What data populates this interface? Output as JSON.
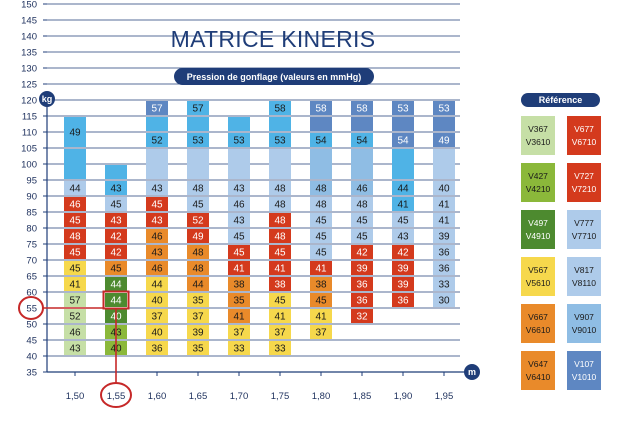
{
  "title": "MATRICE KINERIS",
  "subtitle": "Pression de gonflage (valeurs en mmHg)",
  "colors": {
    "navy": "#1f3d78",
    "light_green": "#c6dfa6",
    "green": "#8bb83a",
    "dark_green": "#4d8a2f",
    "yellow": "#f6d84c",
    "orange": "#e98a2a",
    "red": "#d43a1d",
    "pale_blue": "#aecbea",
    "light_blue": "#8fbde4",
    "sky": "#4fb3e6",
    "steel": "#5e87c2",
    "indigo": "#3f5fa7"
  },
  "legend": {
    "title": "Référence",
    "items": [
      {
        "l1": "V367",
        "l2": "V3610",
        "color": "light_green"
      },
      {
        "l1": "V677",
        "l2": "V6710",
        "color": "red"
      },
      {
        "l1": "V427",
        "l2": "V4210",
        "color": "green"
      },
      {
        "l1": "V727",
        "l2": "V7210",
        "color": "red"
      },
      {
        "l1": "V497",
        "l2": "V4910",
        "color": "dark_green"
      },
      {
        "l1": "V777",
        "l2": "V7710",
        "color": "pale_blue"
      },
      {
        "l1": "V567",
        "l2": "V5610",
        "color": "yellow"
      },
      {
        "l1": "V817",
        "l2": "V8110",
        "color": "pale_blue"
      },
      {
        "l1": "V667",
        "l2": "V6610",
        "color": "orange"
      },
      {
        "l1": "V907",
        "l2": "V9010",
        "color": "light_blue"
      },
      {
        "l1": "V647",
        "l2": "V6410",
        "color": "orange"
      },
      {
        "l1": "V107",
        "l2": "V1010",
        "color": "steel"
      }
    ]
  },
  "chart_data": {
    "type": "heatmap",
    "x_unit": "m",
    "y_unit": "kg",
    "x_ticks": [
      "1,50",
      "1,55",
      "1,60",
      "1,65",
      "1,70",
      "1,75",
      "1,80",
      "1,85",
      "1,90",
      "1,95"
    ],
    "y_ticks": [
      35,
      40,
      45,
      50,
      55,
      60,
      65,
      70,
      75,
      80,
      85,
      90,
      95,
      100,
      105,
      110,
      115,
      120,
      125,
      130,
      135,
      140,
      145,
      150
    ],
    "highlight": {
      "x": "1,55",
      "y": 55
    },
    "columns": [
      {
        "x": "1,50",
        "cells": [
          {
            "from": 40,
            "to": 45,
            "v": "43",
            "c": "light_green"
          },
          {
            "from": 45,
            "to": 50,
            "v": "46",
            "c": "light_green"
          },
          {
            "from": 50,
            "to": 55,
            "v": "52",
            "c": "light_green"
          },
          {
            "from": 55,
            "to": 60,
            "v": "57",
            "c": "light_green"
          },
          {
            "from": 60,
            "to": 65,
            "v": "41",
            "c": "yellow"
          },
          {
            "from": 65,
            "to": 70,
            "v": "45",
            "c": "yellow"
          },
          {
            "from": 70,
            "to": 75,
            "v": "45",
            "c": "red"
          },
          {
            "from": 75,
            "to": 80,
            "v": "48",
            "c": "red"
          },
          {
            "from": 80,
            "to": 85,
            "v": "45",
            "c": "red"
          },
          {
            "from": 85,
            "to": 90,
            "v": "46",
            "c": "red"
          },
          {
            "from": 90,
            "to": 95,
            "v": "44",
            "c": "pale_blue"
          },
          {
            "from": 95,
            "to": 105,
            "v": "",
            "c": "sky"
          },
          {
            "from": 105,
            "to": 115,
            "v": "49",
            "c": "sky"
          }
        ]
      },
      {
        "x": "1,55",
        "cells": [
          {
            "from": 40,
            "to": 45,
            "v": "40",
            "c": "green"
          },
          {
            "from": 45,
            "to": 50,
            "v": "43",
            "c": "green"
          },
          {
            "from": 50,
            "to": 55,
            "v": "40",
            "c": "dark_green"
          },
          {
            "from": 55,
            "to": 60,
            "v": "44",
            "c": "dark_green"
          },
          {
            "from": 60,
            "to": 65,
            "v": "44",
            "c": "dark_green"
          },
          {
            "from": 65,
            "to": 70,
            "v": "45",
            "c": "orange"
          },
          {
            "from": 70,
            "to": 75,
            "v": "42",
            "c": "red"
          },
          {
            "from": 75,
            "to": 80,
            "v": "42",
            "c": "red"
          },
          {
            "from": 80,
            "to": 85,
            "v": "43",
            "c": "red"
          },
          {
            "from": 85,
            "to": 90,
            "v": "45",
            "c": "pale_blue"
          },
          {
            "from": 90,
            "to": 95,
            "v": "43",
            "c": "sky"
          },
          {
            "from": 95,
            "to": 100,
            "v": "",
            "c": "sky"
          }
        ]
      },
      {
        "x": "1,60",
        "cells": [
          {
            "from": 40,
            "to": 45,
            "v": "36",
            "c": "yellow"
          },
          {
            "from": 45,
            "to": 50,
            "v": "40",
            "c": "yellow"
          },
          {
            "from": 50,
            "to": 55,
            "v": "37",
            "c": "yellow"
          },
          {
            "from": 55,
            "to": 60,
            "v": "40",
            "c": "yellow"
          },
          {
            "from": 60,
            "to": 65,
            "v": "44",
            "c": "yellow"
          },
          {
            "from": 65,
            "to": 70,
            "v": "46",
            "c": "orange"
          },
          {
            "from": 70,
            "to": 75,
            "v": "43",
            "c": "orange"
          },
          {
            "from": 75,
            "to": 80,
            "v": "46",
            "c": "orange"
          },
          {
            "from": 80,
            "to": 85,
            "v": "43",
            "c": "red"
          },
          {
            "from": 85,
            "to": 90,
            "v": "45",
            "c": "red"
          },
          {
            "from": 90,
            "to": 95,
            "v": "43",
            "c": "pale_blue"
          },
          {
            "from": 95,
            "to": 105,
            "v": "",
            "c": "pale_blue"
          },
          {
            "from": 105,
            "to": 110,
            "v": "52",
            "c": "sky"
          },
          {
            "from": 110,
            "to": 115,
            "v": "",
            "c": "sky"
          },
          {
            "from": 115,
            "to": 120,
            "v": "57",
            "c": "steel"
          }
        ]
      },
      {
        "x": "1,65",
        "cells": [
          {
            "from": 40,
            "to": 45,
            "v": "35",
            "c": "yellow"
          },
          {
            "from": 45,
            "to": 50,
            "v": "39",
            "c": "yellow"
          },
          {
            "from": 50,
            "to": 55,
            "v": "37",
            "c": "yellow"
          },
          {
            "from": 55,
            "to": 60,
            "v": "35",
            "c": "yellow"
          },
          {
            "from": 60,
            "to": 65,
            "v": "44",
            "c": "orange"
          },
          {
            "from": 65,
            "to": 70,
            "v": "48",
            "c": "orange"
          },
          {
            "from": 70,
            "to": 75,
            "v": "48",
            "c": "orange"
          },
          {
            "from": 75,
            "to": 80,
            "v": "49",
            "c": "red"
          },
          {
            "from": 80,
            "to": 85,
            "v": "52",
            "c": "red"
          },
          {
            "from": 85,
            "to": 90,
            "v": "45",
            "c": "pale_blue"
          },
          {
            "from": 90,
            "to": 95,
            "v": "48",
            "c": "pale_blue"
          },
          {
            "from": 95,
            "to": 105,
            "v": "",
            "c": "pale_blue"
          },
          {
            "from": 105,
            "to": 110,
            "v": "53",
            "c": "sky"
          },
          {
            "from": 110,
            "to": 115,
            "v": "",
            "c": "sky"
          },
          {
            "from": 115,
            "to": 120,
            "v": "57",
            "c": "sky"
          }
        ]
      },
      {
        "x": "1,70",
        "cells": [
          {
            "from": 40,
            "to": 45,
            "v": "33",
            "c": "yellow"
          },
          {
            "from": 45,
            "to": 50,
            "v": "37",
            "c": "yellow"
          },
          {
            "from": 50,
            "to": 55,
            "v": "41",
            "c": "orange"
          },
          {
            "from": 55,
            "to": 60,
            "v": "35",
            "c": "orange"
          },
          {
            "from": 60,
            "to": 65,
            "v": "38",
            "c": "orange"
          },
          {
            "from": 65,
            "to": 70,
            "v": "41",
            "c": "red"
          },
          {
            "from": 70,
            "to": 75,
            "v": "45",
            "c": "red"
          },
          {
            "from": 75,
            "to": 80,
            "v": "45",
            "c": "pale_blue"
          },
          {
            "from": 80,
            "to": 85,
            "v": "43",
            "c": "pale_blue"
          },
          {
            "from": 85,
            "to": 90,
            "v": "46",
            "c": "pale_blue"
          },
          {
            "from": 90,
            "to": 95,
            "v": "43",
            "c": "pale_blue"
          },
          {
            "from": 95,
            "to": 105,
            "v": "",
            "c": "pale_blue"
          },
          {
            "from": 105,
            "to": 110,
            "v": "53",
            "c": "sky"
          },
          {
            "from": 110,
            "to": 115,
            "v": "",
            "c": "sky"
          }
        ]
      },
      {
        "x": "1,75",
        "cells": [
          {
            "from": 40,
            "to": 45,
            "v": "33",
            "c": "yellow"
          },
          {
            "from": 45,
            "to": 50,
            "v": "37",
            "c": "yellow"
          },
          {
            "from": 50,
            "to": 55,
            "v": "41",
            "c": "yellow"
          },
          {
            "from": 55,
            "to": 60,
            "v": "45",
            "c": "yellow"
          },
          {
            "from": 60,
            "to": 65,
            "v": "38",
            "c": "red"
          },
          {
            "from": 65,
            "to": 70,
            "v": "41",
            "c": "red"
          },
          {
            "from": 70,
            "to": 75,
            "v": "45",
            "c": "red"
          },
          {
            "from": 75,
            "to": 80,
            "v": "48",
            "c": "red"
          },
          {
            "from": 80,
            "to": 85,
            "v": "48",
            "c": "red"
          },
          {
            "from": 85,
            "to": 90,
            "v": "48",
            "c": "pale_blue"
          },
          {
            "from": 90,
            "to": 95,
            "v": "48",
            "c": "pale_blue"
          },
          {
            "from": 95,
            "to": 105,
            "v": "",
            "c": "pale_blue"
          },
          {
            "from": 105,
            "to": 110,
            "v": "53",
            "c": "sky"
          },
          {
            "from": 110,
            "to": 115,
            "v": "",
            "c": "sky"
          },
          {
            "from": 115,
            "to": 120,
            "v": "58",
            "c": "sky"
          }
        ]
      },
      {
        "x": "1,80",
        "cells": [
          {
            "from": 45,
            "to": 50,
            "v": "37",
            "c": "yellow"
          },
          {
            "from": 50,
            "to": 55,
            "v": "41",
            "c": "yellow"
          },
          {
            "from": 55,
            "to": 60,
            "v": "45",
            "c": "orange"
          },
          {
            "from": 60,
            "to": 65,
            "v": "38",
            "c": "orange"
          },
          {
            "from": 65,
            "to": 70,
            "v": "41",
            "c": "red"
          },
          {
            "from": 70,
            "to": 75,
            "v": "45",
            "c": "pale_blue"
          },
          {
            "from": 75,
            "to": 80,
            "v": "45",
            "c": "pale_blue"
          },
          {
            "from": 80,
            "to": 85,
            "v": "45",
            "c": "pale_blue"
          },
          {
            "from": 85,
            "to": 90,
            "v": "48",
            "c": "pale_blue"
          },
          {
            "from": 90,
            "to": 95,
            "v": "48",
            "c": "light_blue"
          },
          {
            "from": 95,
            "to": 105,
            "v": "",
            "c": "light_blue"
          },
          {
            "from": 105,
            "to": 110,
            "v": "54",
            "c": "sky"
          },
          {
            "from": 110,
            "to": 115,
            "v": "",
            "c": "steel"
          },
          {
            "from": 115,
            "to": 120,
            "v": "58",
            "c": "steel"
          }
        ]
      },
      {
        "x": "1,85",
        "cells": [
          {
            "from": 50,
            "to": 55,
            "v": "32",
            "c": "red"
          },
          {
            "from": 55,
            "to": 60,
            "v": "36",
            "c": "red"
          },
          {
            "from": 60,
            "to": 65,
            "v": "36",
            "c": "red"
          },
          {
            "from": 65,
            "to": 70,
            "v": "39",
            "c": "red"
          },
          {
            "from": 70,
            "to": 75,
            "v": "42",
            "c": "red"
          },
          {
            "from": 75,
            "to": 80,
            "v": "45",
            "c": "pale_blue"
          },
          {
            "from": 80,
            "to": 85,
            "v": "45",
            "c": "pale_blue"
          },
          {
            "from": 85,
            "to": 90,
            "v": "48",
            "c": "pale_blue"
          },
          {
            "from": 90,
            "to": 95,
            "v": "46",
            "c": "light_blue"
          },
          {
            "from": 95,
            "to": 105,
            "v": "",
            "c": "light_blue"
          },
          {
            "from": 105,
            "to": 110,
            "v": "54",
            "c": "sky"
          },
          {
            "from": 110,
            "to": 115,
            "v": "",
            "c": "steel"
          },
          {
            "from": 115,
            "to": 120,
            "v": "58",
            "c": "steel"
          }
        ]
      },
      {
        "x": "1,90",
        "cells": [
          {
            "from": 55,
            "to": 60,
            "v": "36",
            "c": "red"
          },
          {
            "from": 60,
            "to": 65,
            "v": "39",
            "c": "red"
          },
          {
            "from": 65,
            "to": 70,
            "v": "39",
            "c": "red"
          },
          {
            "from": 70,
            "to": 75,
            "v": "42",
            "c": "red"
          },
          {
            "from": 75,
            "to": 80,
            "v": "43",
            "c": "pale_blue"
          },
          {
            "from": 80,
            "to": 85,
            "v": "45",
            "c": "pale_blue"
          },
          {
            "from": 85,
            "to": 90,
            "v": "41",
            "c": "sky"
          },
          {
            "from": 90,
            "to": 95,
            "v": "44",
            "c": "sky"
          },
          {
            "from": 95,
            "to": 105,
            "v": "",
            "c": "sky"
          },
          {
            "from": 105,
            "to": 110,
            "v": "54",
            "c": "steel"
          },
          {
            "from": 110,
            "to": 115,
            "v": "",
            "c": "steel"
          },
          {
            "from": 115,
            "to": 120,
            "v": "53",
            "c": "steel"
          }
        ]
      },
      {
        "x": "1,95",
        "cells": [
          {
            "from": 55,
            "to": 60,
            "v": "30",
            "c": "pale_blue"
          },
          {
            "from": 60,
            "to": 65,
            "v": "33",
            "c": "pale_blue"
          },
          {
            "from": 65,
            "to": 70,
            "v": "36",
            "c": "pale_blue"
          },
          {
            "from": 70,
            "to": 75,
            "v": "36",
            "c": "pale_blue"
          },
          {
            "from": 75,
            "to": 80,
            "v": "39",
            "c": "pale_blue"
          },
          {
            "from": 80,
            "to": 85,
            "v": "41",
            "c": "pale_blue"
          },
          {
            "from": 85,
            "to": 90,
            "v": "41",
            "c": "pale_blue"
          },
          {
            "from": 90,
            "to": 95,
            "v": "40",
            "c": "pale_blue"
          },
          {
            "from": 95,
            "to": 105,
            "v": "",
            "c": "pale_blue"
          },
          {
            "from": 105,
            "to": 110,
            "v": "49",
            "c": "steel"
          },
          {
            "from": 110,
            "to": 115,
            "v": "",
            "c": "steel"
          },
          {
            "from": 115,
            "to": 120,
            "v": "53",
            "c": "steel"
          }
        ]
      }
    ]
  }
}
